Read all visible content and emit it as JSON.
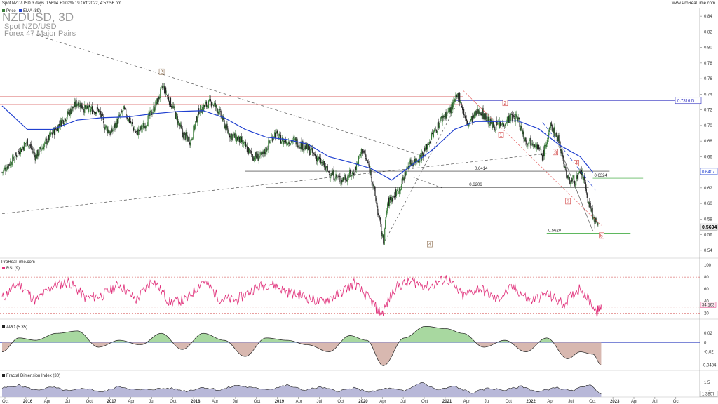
{
  "header": {
    "info": "Spot NZD/USD 3 days 0.5694 +0.02% 19 Oct 2022, 4:52:56 pm",
    "site": "www.ProRealTime.com"
  },
  "watermark": {
    "symbol": "NZDUSD, 3D",
    "name": "Spot NZD/USD",
    "group": "Forex 47 Major Pairs"
  },
  "legend": {
    "price": "Price",
    "ema": "EMA (89)"
  },
  "provider": "ProRealTime.com",
  "colors": {
    "up": "#3a7d3a",
    "down": "#222222",
    "ema": "#2040d0",
    "rsi": "#e0307a",
    "apo_pos": "#a8d8a0",
    "apo_neg": "#d8b8b0",
    "fdi": "#b8b8d8",
    "green_line": "#2aa02a",
    "blue_line": "#3030c0"
  },
  "chart_data": [
    {
      "type": "candlestick",
      "x_ticks": [
        "Oct",
        "2016",
        "Apr",
        "Jul",
        "Oct",
        "2017",
        "Apr",
        "Jul",
        "Oct",
        "2018",
        "Apr",
        "Jul",
        "Oct",
        "2019",
        "Apr",
        "Jul",
        "Oct",
        "2020",
        "Apr",
        "Jul",
        "Oct",
        "2021",
        "Apr",
        "Jul",
        "Oct",
        "2022",
        "Apr",
        "Jul",
        "Oct",
        "2023",
        "Apr",
        "Jul",
        "Oct"
      ],
      "y_ticks": [
        0.54,
        0.56,
        0.58,
        0.6,
        0.62,
        0.64,
        0.66,
        0.68,
        0.7,
        0.72,
        0.74,
        0.76,
        0.78,
        0.8,
        0.82,
        0.84
      ],
      "ylim": [
        0.53,
        0.85
      ],
      "path_points": [
        [
          2015.7,
          0.64
        ],
        [
          2015.85,
          0.66
        ],
        [
          2016.0,
          0.68
        ],
        [
          2016.1,
          0.66
        ],
        [
          2016.3,
          0.69
        ],
        [
          2016.45,
          0.71
        ],
        [
          2016.6,
          0.73
        ],
        [
          2016.7,
          0.72
        ],
        [
          2016.85,
          0.72
        ],
        [
          2016.92,
          0.7
        ],
        [
          2017.0,
          0.69
        ],
        [
          2017.15,
          0.72
        ],
        [
          2017.3,
          0.69
        ],
        [
          2017.4,
          0.7
        ],
        [
          2017.55,
          0.73
        ],
        [
          2017.62,
          0.75
        ],
        [
          2017.75,
          0.72
        ],
        [
          2017.85,
          0.69
        ],
        [
          2017.95,
          0.68
        ],
        [
          2018.05,
          0.72
        ],
        [
          2018.2,
          0.73
        ],
        [
          2018.28,
          0.72
        ],
        [
          2018.4,
          0.69
        ],
        [
          2018.55,
          0.68
        ],
        [
          2018.7,
          0.66
        ],
        [
          2018.8,
          0.66
        ],
        [
          2018.95,
          0.69
        ],
        [
          2019.05,
          0.68
        ],
        [
          2019.2,
          0.68
        ],
        [
          2019.35,
          0.67
        ],
        [
          2019.45,
          0.66
        ],
        [
          2019.6,
          0.64
        ],
        [
          2019.75,
          0.63
        ],
        [
          2019.9,
          0.64
        ],
        [
          2020.0,
          0.67
        ],
        [
          2020.1,
          0.64
        ],
        [
          2020.2,
          0.58
        ],
        [
          2020.25,
          0.55
        ],
        [
          2020.3,
          0.6
        ],
        [
          2020.45,
          0.62
        ],
        [
          2020.55,
          0.65
        ],
        [
          2020.7,
          0.66
        ],
        [
          2020.85,
          0.69
        ],
        [
          2020.95,
          0.71
        ],
        [
          2021.05,
          0.72
        ],
        [
          2021.15,
          0.74
        ],
        [
          2021.25,
          0.7
        ],
        [
          2021.4,
          0.72
        ],
        [
          2021.55,
          0.7
        ],
        [
          2021.65,
          0.7
        ],
        [
          2021.75,
          0.71
        ],
        [
          2021.85,
          0.71
        ],
        [
          2021.95,
          0.68
        ],
        [
          2022.05,
          0.68
        ],
        [
          2022.15,
          0.66
        ],
        [
          2022.25,
          0.7
        ],
        [
          2022.35,
          0.68
        ],
        [
          2022.45,
          0.63
        ],
        [
          2022.55,
          0.63
        ],
        [
          2022.62,
          0.64
        ],
        [
          2022.7,
          0.6
        ],
        [
          2022.8,
          0.57
        ],
        [
          2022.82,
          0.5694
        ]
      ],
      "ema": [
        [
          2015.7,
          0.725
        ],
        [
          2016.0,
          0.695
        ],
        [
          2016.3,
          0.695
        ],
        [
          2016.6,
          0.707
        ],
        [
          2016.9,
          0.71
        ],
        [
          2017.2,
          0.711
        ],
        [
          2017.5,
          0.715
        ],
        [
          2017.8,
          0.718
        ],
        [
          2018.1,
          0.719
        ],
        [
          2018.35,
          0.71
        ],
        [
          2018.6,
          0.695
        ],
        [
          2018.85,
          0.685
        ],
        [
          2019.1,
          0.682
        ],
        [
          2019.35,
          0.676
        ],
        [
          2019.6,
          0.66
        ],
        [
          2019.85,
          0.653
        ],
        [
          2020.1,
          0.645
        ],
        [
          2020.35,
          0.63
        ],
        [
          2020.6,
          0.65
        ],
        [
          2020.85,
          0.67
        ],
        [
          2021.1,
          0.695
        ],
        [
          2021.35,
          0.705
        ],
        [
          2021.6,
          0.705
        ],
        [
          2021.85,
          0.706
        ],
        [
          2022.1,
          0.696
        ],
        [
          2022.35,
          0.675
        ],
        [
          2022.6,
          0.66
        ],
        [
          2022.75,
          0.64
        ]
      ],
      "hlines": [
        {
          "y": 0.6414,
          "label": "0.6414",
          "x0": 2018.6,
          "x1": 2022.95
        },
        {
          "y": 0.6206,
          "label": "0.6206",
          "x0": 2018.85,
          "x1": 2022.7
        },
        {
          "y": 0.562,
          "label": "0.5620",
          "x0": 2022.2,
          "x1": 2023.2
        },
        {
          "y": 0.6324,
          "label": "0.6324",
          "x0": 2022.75,
          "x1": 2023.35
        }
      ],
      "price_tags": [
        {
          "y": 0.7316,
          "label": "0.7316 D"
        },
        {
          "y": 0.6407,
          "label": "0.6407"
        },
        {
          "y": 0.5694,
          "label": "0.5694"
        }
      ],
      "wave_labels": [
        {
          "label": "2",
          "x": 2017.6,
          "y": 0.768
        },
        {
          "label": "4",
          "x": 2020.8,
          "y": 0.547
        },
        {
          "label": "1",
          "x": 2021.65,
          "y": 0.687
        },
        {
          "label": "2",
          "x": 2021.7,
          "y": 0.728
        },
        {
          "label": "3",
          "x": 2022.3,
          "y": 0.665
        },
        {
          "label": "4",
          "x": 2022.55,
          "y": 0.651
        },
        {
          "label": "3",
          "x": 2022.45,
          "y": 0.602
        },
        {
          "label": "5",
          "x": 2022.85,
          "y": 0.558
        }
      ]
    },
    {
      "type": "line",
      "name": "RSI (9)",
      "ylim": [
        10,
        100
      ],
      "y_ticks": [
        20,
        40,
        60,
        80,
        100
      ],
      "levels": [
        20,
        30,
        70,
        80
      ],
      "last_value": "34.163",
      "series": [
        [
          2015.7,
          45
        ],
        [
          2015.9,
          70
        ],
        [
          2016.1,
          40
        ],
        [
          2016.3,
          65
        ],
        [
          2016.5,
          72
        ],
        [
          2016.7,
          45
        ],
        [
          2016.9,
          50
        ],
        [
          2017.1,
          68
        ],
        [
          2017.3,
          42
        ],
        [
          2017.5,
          76
        ],
        [
          2017.7,
          38
        ],
        [
          2017.9,
          42
        ],
        [
          2018.1,
          75
        ],
        [
          2018.3,
          44
        ],
        [
          2018.5,
          42
        ],
        [
          2018.7,
          60
        ],
        [
          2018.9,
          70
        ],
        [
          2019.1,
          55
        ],
        [
          2019.3,
          48
        ],
        [
          2019.5,
          38
        ],
        [
          2019.7,
          50
        ],
        [
          2019.9,
          70
        ],
        [
          2020.1,
          40
        ],
        [
          2020.23,
          18
        ],
        [
          2020.4,
          65
        ],
        [
          2020.6,
          72
        ],
        [
          2020.8,
          64
        ],
        [
          2021.0,
          78
        ],
        [
          2021.2,
          48
        ],
        [
          2021.4,
          62
        ],
        [
          2021.6,
          42
        ],
        [
          2021.8,
          64
        ],
        [
          2022.0,
          40
        ],
        [
          2022.2,
          52
        ],
        [
          2022.4,
          35
        ],
        [
          2022.6,
          63
        ],
        [
          2022.8,
          22
        ],
        [
          2022.85,
          34
        ]
      ]
    },
    {
      "type": "area",
      "name": "APO (5 35)",
      "ylim": [
        -0.06,
        0.04
      ],
      "y_ticks": [
        "0.02",
        "0",
        "-0.02"
      ],
      "last_value": "-0.0484",
      "series": [
        [
          2015.7,
          -0.02
        ],
        [
          2015.9,
          0.01
        ],
        [
          2016.1,
          0.005
        ],
        [
          2016.35,
          0.02
        ],
        [
          2016.6,
          0.025
        ],
        [
          2016.85,
          -0.01
        ],
        [
          2017.1,
          0.005
        ],
        [
          2017.35,
          -0.005
        ],
        [
          2017.6,
          0.02
        ],
        [
          2017.85,
          -0.015
        ],
        [
          2018.1,
          0.02
        ],
        [
          2018.35,
          0.005
        ],
        [
          2018.6,
          -0.03
        ],
        [
          2018.85,
          0.01
        ],
        [
          2019.1,
          0.005
        ],
        [
          2019.35,
          -0.005
        ],
        [
          2019.6,
          -0.02
        ],
        [
          2019.85,
          0.015
        ],
        [
          2020.05,
          0.005
        ],
        [
          2020.25,
          -0.05
        ],
        [
          2020.5,
          0.01
        ],
        [
          2020.75,
          0.035
        ],
        [
          2021.0,
          0.03
        ],
        [
          2021.2,
          0.02
        ],
        [
          2021.45,
          -0.01
        ],
        [
          2021.7,
          0.005
        ],
        [
          2021.95,
          -0.02
        ],
        [
          2022.2,
          0.01
        ],
        [
          2022.45,
          -0.035
        ],
        [
          2022.6,
          -0.02
        ],
        [
          2022.75,
          -0.025
        ],
        [
          2022.85,
          -0.0484
        ]
      ]
    },
    {
      "type": "area",
      "name": "Fractal Dimension Index (30)",
      "ylim": [
        1.35,
        1.6
      ],
      "y_ticks": [
        "1.5",
        "1.4"
      ],
      "last_value": "1.3807",
      "series": [
        [
          2015.7,
          1.44
        ],
        [
          2015.9,
          1.47
        ],
        [
          2016.1,
          1.42
        ],
        [
          2016.3,
          1.45
        ],
        [
          2016.5,
          1.41
        ],
        [
          2016.7,
          1.44
        ],
        [
          2016.9,
          1.4
        ],
        [
          2017.1,
          1.46
        ],
        [
          2017.3,
          1.42
        ],
        [
          2017.5,
          1.43
        ],
        [
          2017.7,
          1.44
        ],
        [
          2017.9,
          1.41
        ],
        [
          2018.1,
          1.45
        ],
        [
          2018.3,
          1.42
        ],
        [
          2018.5,
          1.47
        ],
        [
          2018.7,
          1.44
        ],
        [
          2018.9,
          1.43
        ],
        [
          2019.1,
          1.47
        ],
        [
          2019.3,
          1.42
        ],
        [
          2019.5,
          1.45
        ],
        [
          2019.7,
          1.41
        ],
        [
          2019.9,
          1.44
        ],
        [
          2020.1,
          1.4
        ],
        [
          2020.3,
          1.44
        ],
        [
          2020.5,
          1.41
        ],
        [
          2020.7,
          1.5
        ],
        [
          2020.9,
          1.42
        ],
        [
          2021.1,
          1.46
        ],
        [
          2021.3,
          1.39
        ],
        [
          2021.5,
          1.44
        ],
        [
          2021.7,
          1.42
        ],
        [
          2021.9,
          1.46
        ],
        [
          2022.1,
          1.4
        ],
        [
          2022.3,
          1.45
        ],
        [
          2022.5,
          1.41
        ],
        [
          2022.7,
          1.48
        ],
        [
          2022.85,
          1.3807
        ]
      ]
    }
  ]
}
